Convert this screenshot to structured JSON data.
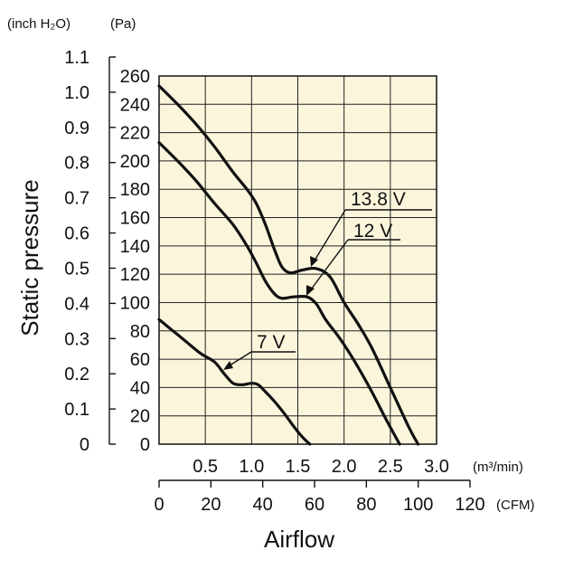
{
  "chart_data": {
    "type": "line",
    "title": "",
    "ylabel": "Static pressure",
    "xlabel": "Airflow",
    "y_units": {
      "inch": "(inch H₂O)",
      "pa": "(Pa)"
    },
    "x_units": {
      "m3": "(m³/min)",
      "cfm": "(CFM)"
    },
    "ylim_pa": [
      0,
      260
    ],
    "xlim_m3": [
      0,
      3.0
    ],
    "xlim_cfm": [
      0,
      120
    ],
    "pa_ticks": [
      "0",
      "20",
      "40",
      "60",
      "80",
      "100",
      "120",
      "140",
      "160",
      "180",
      "200",
      "220",
      "240",
      "260"
    ],
    "inch_ticks": [
      "0",
      "0.1",
      "0.2",
      "0.3",
      "0.4",
      "0.5",
      "0.6",
      "0.7",
      "0.8",
      "0.9",
      "1.0",
      "1.1"
    ],
    "m3_ticks": [
      "0.5",
      "1.0",
      "1.5",
      "2.0",
      "2.5",
      "3.0"
    ],
    "cfm_ticks": [
      "0",
      "20",
      "40",
      "60",
      "80",
      "100",
      "120"
    ],
    "series": [
      {
        "name": "13.8 V",
        "x": [
          0,
          0.2,
          0.4,
          0.6,
          0.8,
          0.95,
          1.05,
          1.15,
          1.25,
          1.33,
          1.42,
          1.55,
          1.7,
          1.85,
          2.0,
          2.15,
          2.3,
          2.5,
          2.7,
          2.8
        ],
        "y": [
          253,
          240,
          226,
          210,
          192,
          180,
          170,
          155,
          137,
          125,
          121,
          123,
          124,
          118,
          100,
          85,
          68,
          40,
          12,
          0
        ]
      },
      {
        "name": "12 V",
        "x": [
          0,
          0.2,
          0.4,
          0.6,
          0.8,
          0.95,
          1.05,
          1.15,
          1.25,
          1.33,
          1.45,
          1.6,
          1.7,
          1.8,
          1.95,
          2.1,
          2.3,
          2.45,
          2.6
        ],
        "y": [
          213,
          200,
          186,
          170,
          155,
          140,
          128,
          115,
          106,
          103,
          104,
          104,
          99,
          88,
          75,
          60,
          37,
          18,
          0
        ]
      },
      {
        "name": "7 V",
        "x": [
          0,
          0.15,
          0.3,
          0.45,
          0.6,
          0.7,
          0.8,
          0.9,
          1.0,
          1.07,
          1.15,
          1.25,
          1.35,
          1.45,
          1.55,
          1.63
        ],
        "y": [
          88,
          80,
          72,
          64,
          58,
          50,
          43,
          42,
          43,
          42,
          37,
          30,
          22,
          13,
          5,
          0
        ]
      }
    ]
  },
  "labels": {
    "v138": "13.8 V",
    "v12": "12 V",
    "v7": "7 V"
  }
}
